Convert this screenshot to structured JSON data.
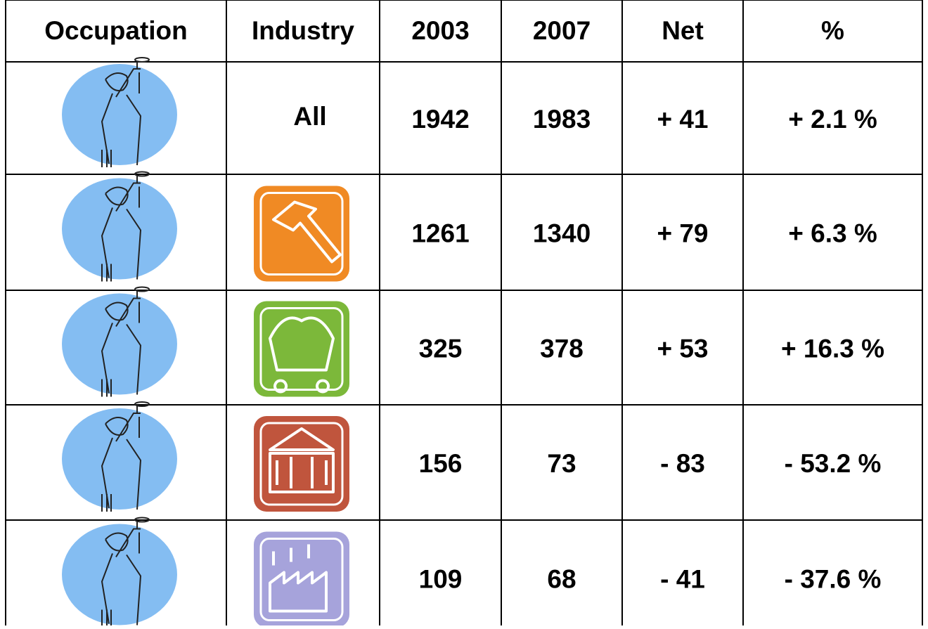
{
  "table": {
    "header": [
      "Occupation",
      "Industry",
      "2003",
      "2007",
      "Net",
      "%"
    ],
    "rows": [
      {
        "industry": "All",
        "cells": [
          1942,
          1983,
          "+ 41",
          "+ 2.1 %"
        ]
      },
      {
        "cells": [
          1261,
          1340,
          "+ 79",
          "+ 6.3 %"
        ]
      },
      {
        "cells": [
          325,
          378,
          "+ 53",
          "+ 16.3 %"
        ]
      },
      {
        "cells": [
          156,
          73,
          "- 83",
          "-  53.2 %"
        ]
      },
      {
        "cells": [
          109,
          68,
          "- 41",
          "- 37.6 %"
        ]
      }
    ]
  }
}
